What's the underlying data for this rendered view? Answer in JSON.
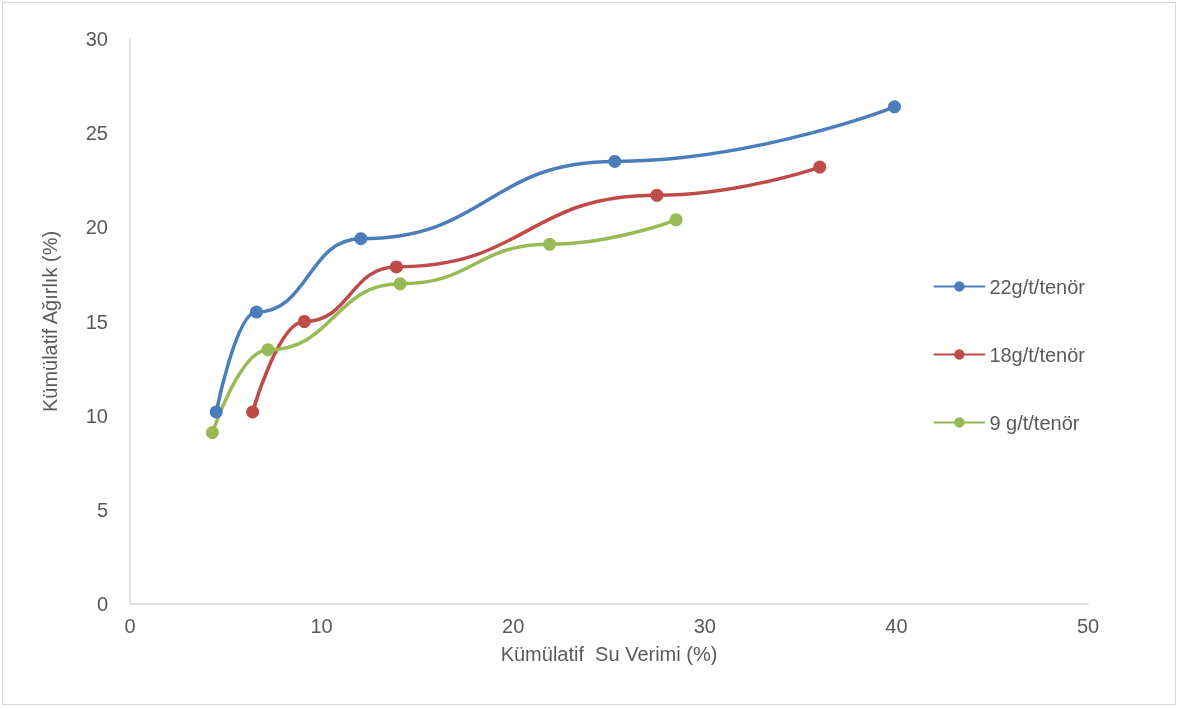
{
  "chart_data": {
    "type": "line",
    "xlabel": "Kümülatif  Su Verimi (%)",
    "ylabel": "Kümülatif Ağırlık (%)",
    "xlim": [
      0,
      50
    ],
    "xticks": [
      0,
      10,
      20,
      30,
      40,
      50
    ],
    "ylim": [
      0,
      30
    ],
    "yticks": [
      0,
      5,
      10,
      15,
      20,
      25,
      30
    ],
    "grid": false,
    "legend": "right",
    "marker": "circle",
    "line_style": "solid",
    "series": [
      {
        "name": "22g/t/tenör",
        "color": "#4a7ebb",
        "x": [
          4.5,
          6.6,
          12.05,
          25.3,
          39.9
        ],
        "values": [
          10.2,
          15.5,
          19.4,
          23.5,
          26.4
        ]
      },
      {
        "name": "18g/t/tenör",
        "color": "#be4b48",
        "x": [
          6.4,
          9.1,
          13.9,
          27.5,
          36.0
        ],
        "values": [
          10.2,
          15.0,
          17.9,
          21.7,
          23.2
        ]
      },
      {
        "name": "9 g/t/tenör",
        "color": "#98b954",
        "x": [
          4.3,
          7.2,
          14.1,
          21.9,
          28.5
        ],
        "values": [
          9.1,
          13.5,
          17.0,
          19.1,
          20.4
        ]
      }
    ]
  }
}
